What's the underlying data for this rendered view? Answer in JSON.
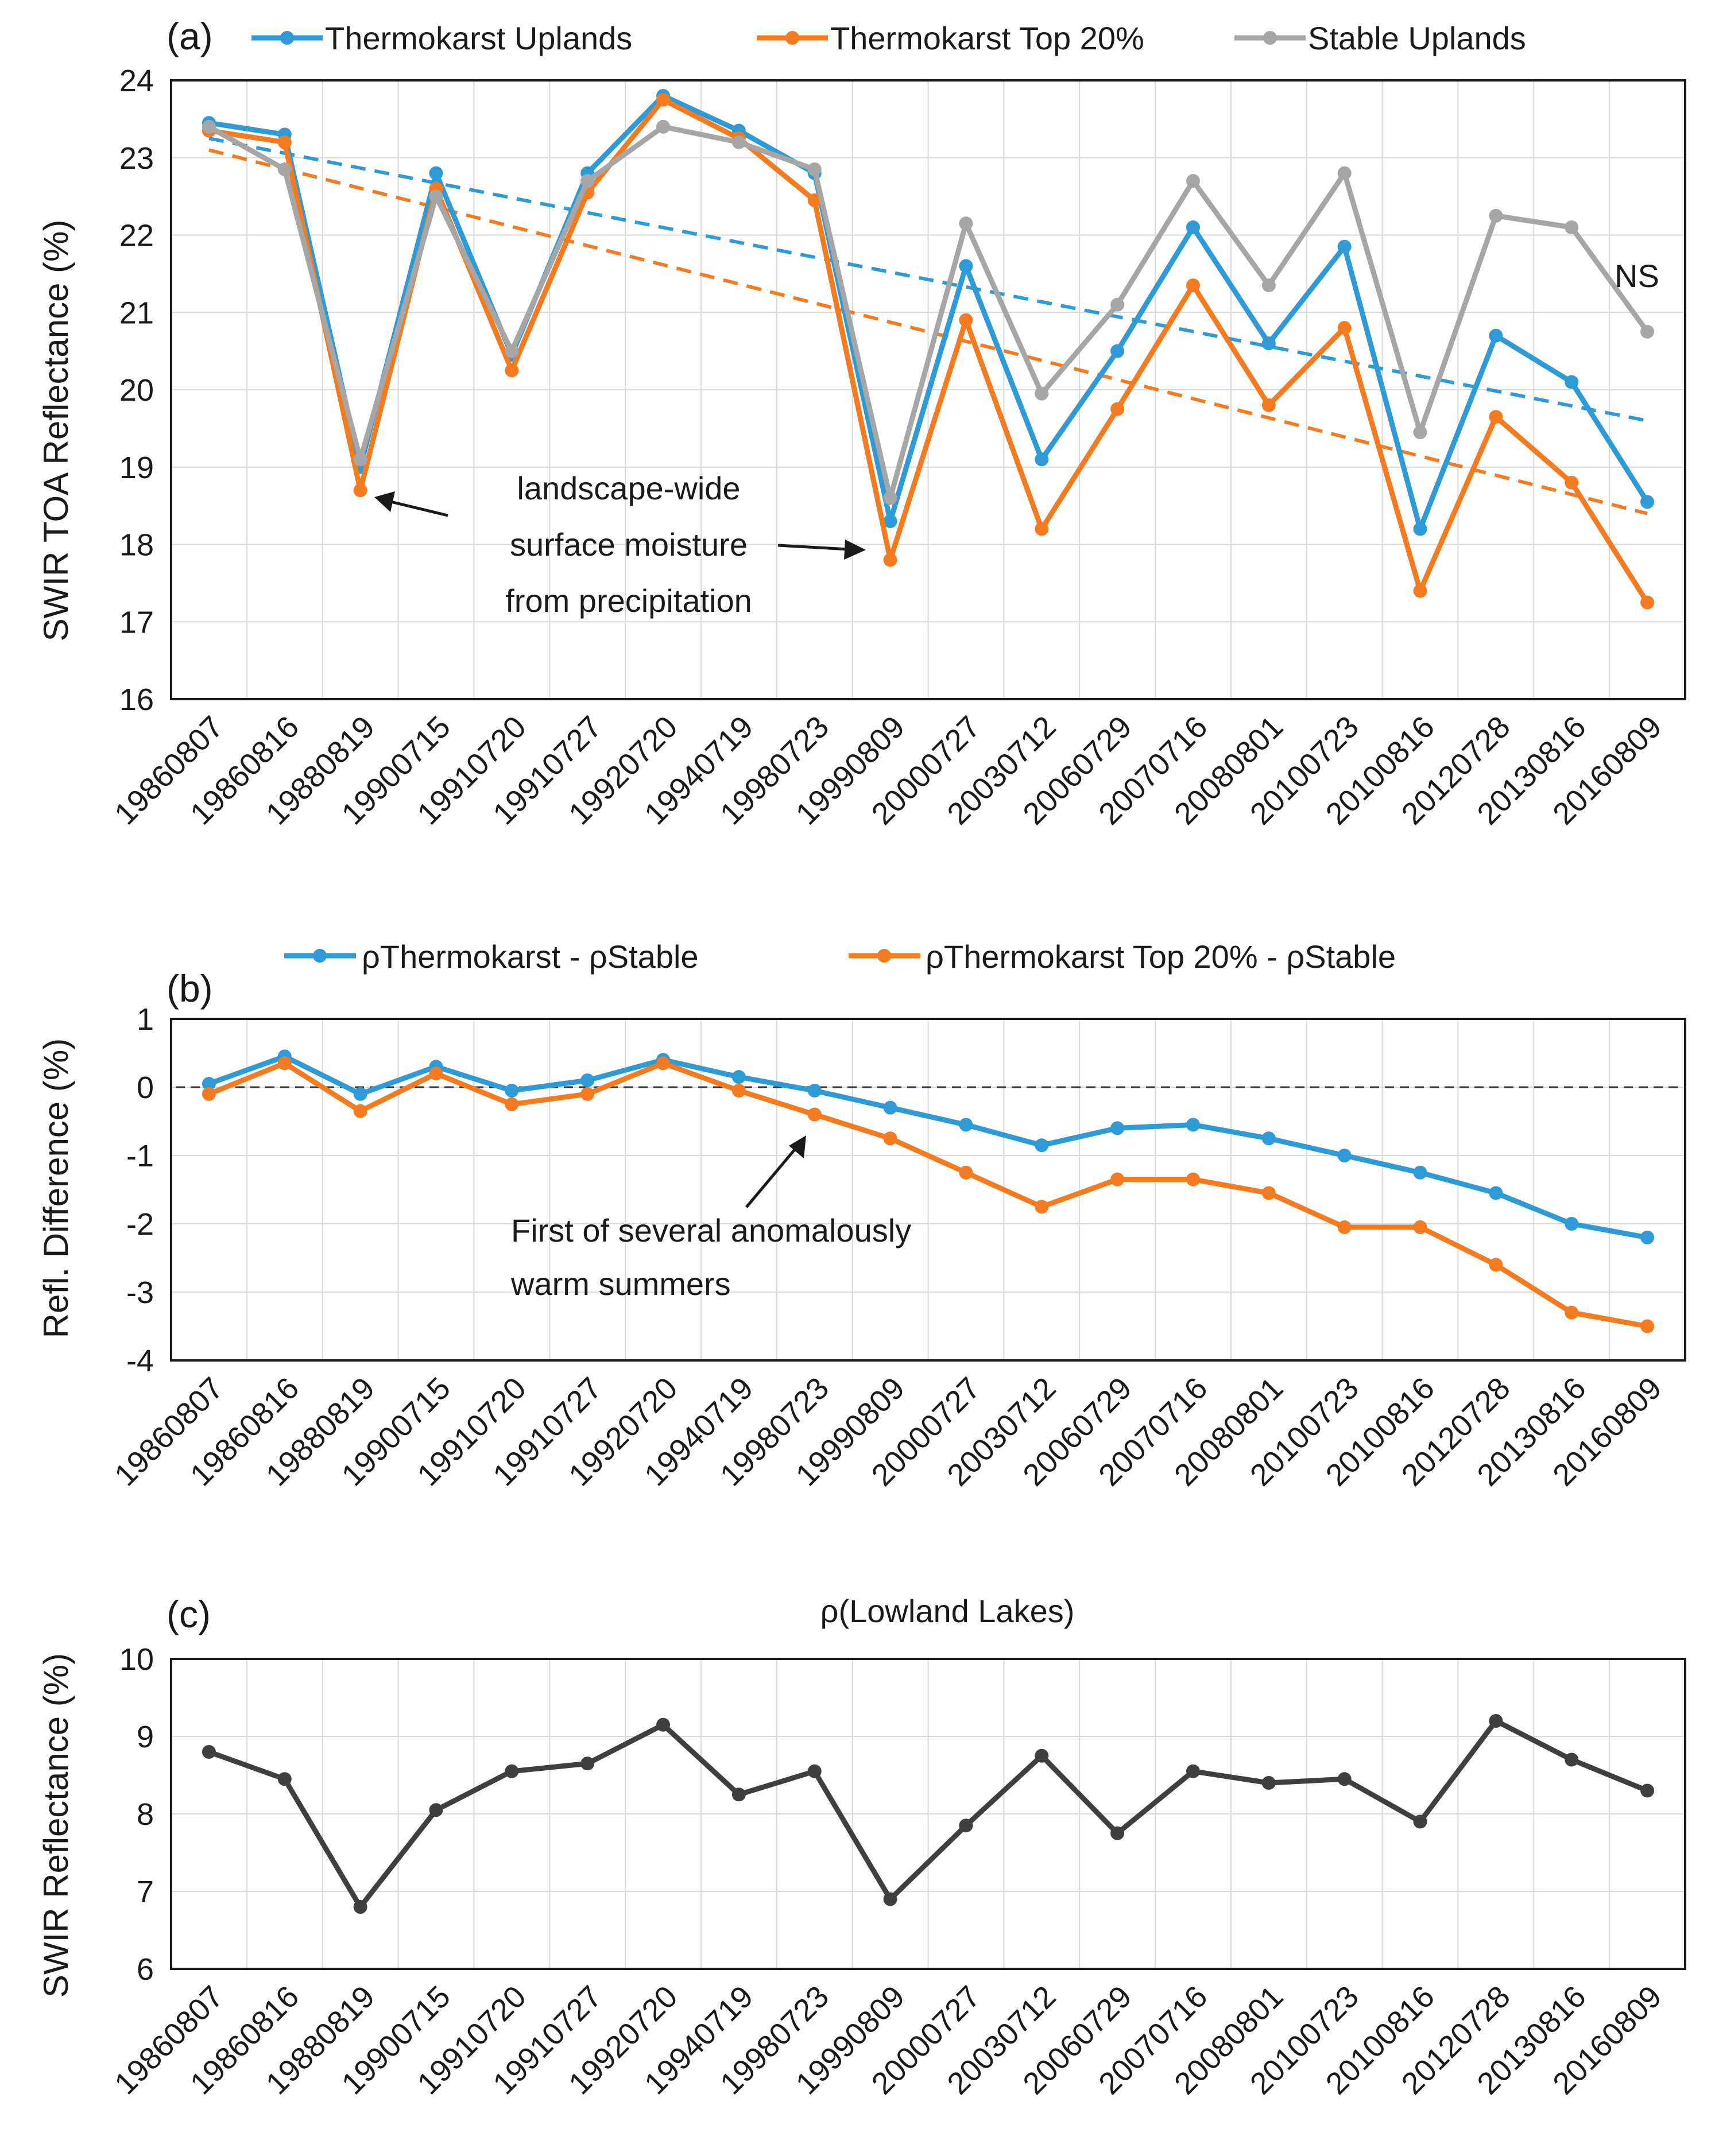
{
  "chart_data": [
    {
      "panel": "(a)",
      "type": "line",
      "title": "",
      "xlabel": "",
      "ylabel": "SWIR TOA Reflectance (%)",
      "ylim": [
        16,
        24
      ],
      "yticks": [
        16,
        17,
        18,
        19,
        20,
        21,
        22,
        23,
        24
      ],
      "grid": true,
      "legend": "top",
      "categories": [
        "19860807",
        "19860816",
        "19880819",
        "19900715",
        "19910720",
        "19910727",
        "19920720",
        "19940719",
        "19980723",
        "19990809",
        "20000727",
        "20030712",
        "20060729",
        "20070716",
        "20080801",
        "20100723",
        "20100816",
        "20120728",
        "20130816",
        "20160809"
      ],
      "series": [
        {
          "name": "Thermokarst Uplands",
          "color": "#2e9bd6",
          "values": [
            23.45,
            23.3,
            19.0,
            22.8,
            20.45,
            22.8,
            23.8,
            23.35,
            22.8,
            18.3,
            21.6,
            19.1,
            20.5,
            22.1,
            20.6,
            21.85,
            18.2,
            20.7,
            20.1,
            18.55
          ]
        },
        {
          "name": "Thermokarst Top 20%",
          "color": "#f47b20",
          "values": [
            23.35,
            23.2,
            18.7,
            22.6,
            20.25,
            22.55,
            23.75,
            23.25,
            22.45,
            17.8,
            20.9,
            18.2,
            19.75,
            21.35,
            19.8,
            20.8,
            17.4,
            19.65,
            18.8,
            17.25
          ]
        },
        {
          "name": "Stable Uplands",
          "color": "#a6a6a6",
          "values": [
            23.4,
            22.85,
            19.1,
            22.5,
            20.5,
            22.7,
            23.4,
            23.2,
            22.85,
            18.6,
            22.15,
            19.95,
            21.1,
            22.7,
            21.35,
            22.8,
            19.45,
            22.25,
            22.1,
            20.75
          ]
        }
      ],
      "trendlines": [
        {
          "series": "Thermokarst Uplands",
          "color": "#2e9bd6",
          "start": 23.25,
          "end": 19.6
        },
        {
          "series": "Thermokarst Top 20%",
          "color": "#f47b20",
          "start": 23.1,
          "end": 18.4
        }
      ],
      "annotations": {
        "ns_label": "NS",
        "moisture_lines": [
          "landscape-wide",
          "surface moisture",
          "from precipitation"
        ]
      }
    },
    {
      "panel": "(b)",
      "type": "line",
      "title": "",
      "xlabel": "",
      "ylabel": "Refl. Difference (%)",
      "ylim": [
        -4,
        1
      ],
      "yticks": [
        -4,
        -3,
        -2,
        -1,
        0,
        1
      ],
      "grid": true,
      "legend": "top",
      "categories": [
        "19860807",
        "19860816",
        "19880819",
        "19900715",
        "19910720",
        "19910727",
        "19920720",
        "19940719",
        "19980723",
        "19990809",
        "20000727",
        "20030712",
        "20060729",
        "20070716",
        "20080801",
        "20100723",
        "20100816",
        "20120728",
        "20130816",
        "20160809"
      ],
      "series": [
        {
          "name": "ρThermokarst -  ρStable",
          "color": "#2e9bd6",
          "values": [
            0.05,
            0.45,
            -0.1,
            0.3,
            -0.05,
            0.1,
            0.4,
            0.15,
            -0.05,
            -0.3,
            -0.55,
            -0.85,
            -0.6,
            -0.55,
            -0.75,
            -1.0,
            -1.25,
            -1.55,
            -2.0,
            -2.2
          ]
        },
        {
          "name": "ρThermokarst Top 20% -  ρStable",
          "color": "#f47b20",
          "values": [
            -0.1,
            0.35,
            -0.35,
            0.2,
            -0.25,
            -0.1,
            0.35,
            -0.05,
            -0.4,
            -0.75,
            -1.25,
            -1.75,
            -1.35,
            -1.35,
            -1.55,
            -2.05,
            -2.05,
            -2.6,
            -3.3,
            -3.5
          ]
        }
      ],
      "zero_line": 0,
      "annotations": {
        "warm_lines": [
          "First of several anomalously",
          "warm summers"
        ]
      }
    },
    {
      "panel": "(c)",
      "type": "line",
      "title": "ρ(Lowland Lakes)",
      "xlabel": "",
      "ylabel": "SWIR Reflectance (%)",
      "ylim": [
        6,
        10
      ],
      "yticks": [
        6,
        7,
        8,
        9,
        10
      ],
      "grid": true,
      "categories": [
        "19860807",
        "19860816",
        "19880819",
        "19900715",
        "19910720",
        "19910727",
        "19920720",
        "19940719",
        "19980723",
        "19990809",
        "20000727",
        "20030712",
        "20060729",
        "20070716",
        "20080801",
        "20100723",
        "20100816",
        "20120728",
        "20130816",
        "20160809"
      ],
      "series": [
        {
          "name": "ρ(Lowland Lakes)",
          "color": "#3f3f3f",
          "values": [
            8.8,
            8.45,
            6.8,
            8.05,
            8.55,
            8.65,
            9.15,
            8.25,
            8.55,
            6.9,
            7.85,
            8.75,
            7.75,
            8.55,
            8.4,
            8.45,
            7.9,
            9.2,
            8.7,
            8.3
          ]
        }
      ]
    }
  ]
}
